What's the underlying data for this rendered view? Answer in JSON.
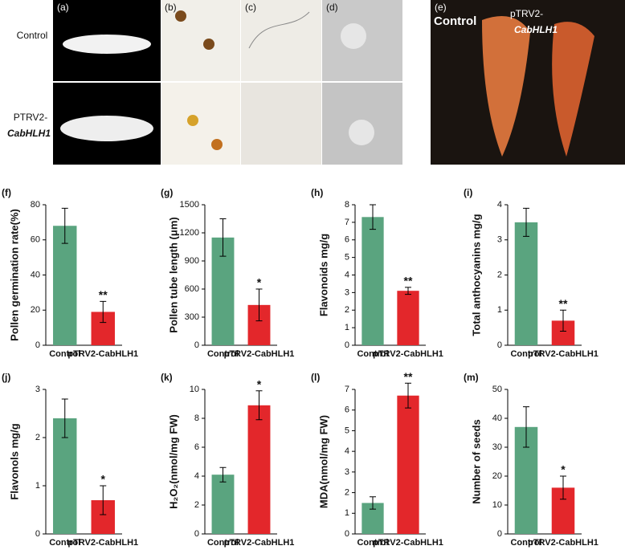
{
  "image_panels": {
    "letters": [
      "(a)",
      "(b)",
      "(c)",
      "(d)",
      "(e)"
    ],
    "row_labels": [
      "Control",
      "PTRV2-",
      "CabHLH1"
    ],
    "fruit_labels": [
      "Control",
      "pTRV2-",
      "CabHLH1"
    ]
  },
  "chart_data": [
    {
      "type": "bar",
      "panel": "(f)",
      "ylabel": "Pollen germination rate(%)",
      "categories": [
        "Control",
        "pTRV2-CabHLH1"
      ],
      "values": [
        68,
        19
      ],
      "errors": [
        10,
        6
      ],
      "significance": [
        null,
        "**"
      ],
      "colors": [
        "#5aa47f",
        "#e3272b"
      ],
      "ylim": [
        0,
        80
      ],
      "yticks": [
        0,
        20,
        40,
        60,
        80
      ]
    },
    {
      "type": "bar",
      "panel": "(g)",
      "ylabel": "Pollen tube length (μm)",
      "categories": [
        "Control",
        "pTRV2-CabHLH1"
      ],
      "values": [
        1150,
        430
      ],
      "errors": [
        200,
        170
      ],
      "significance": [
        null,
        "*"
      ],
      "colors": [
        "#5aa47f",
        "#e3272b"
      ],
      "ylim": [
        0,
        1500
      ],
      "yticks": [
        0,
        300,
        600,
        900,
        1200,
        1500
      ]
    },
    {
      "type": "bar",
      "panel": "(h)",
      "ylabel": "Flavonoids mg/g",
      "categories": [
        "Control",
        "pTRV2-CabHLH1"
      ],
      "values": [
        7.3,
        3.1
      ],
      "errors": [
        0.7,
        0.2
      ],
      "significance": [
        null,
        "**"
      ],
      "colors": [
        "#5aa47f",
        "#e3272b"
      ],
      "ylim": [
        0,
        8
      ],
      "yticks": [
        0,
        1,
        2,
        3,
        4,
        5,
        6,
        7,
        8
      ]
    },
    {
      "type": "bar",
      "panel": "(i)",
      "ylabel": "Total anthocyanins mg/g",
      "categories": [
        "Control",
        "pTRV2-CabHLH1"
      ],
      "values": [
        3.5,
        0.7
      ],
      "errors": [
        0.4,
        0.3
      ],
      "significance": [
        null,
        "**"
      ],
      "colors": [
        "#5aa47f",
        "#e3272b"
      ],
      "ylim": [
        0,
        4
      ],
      "yticks": [
        0,
        1,
        2,
        3,
        4
      ]
    },
    {
      "type": "bar",
      "panel": "(j)",
      "ylabel": "Flavonols mg/g",
      "categories": [
        "Control",
        "pTRV2-CabHLH1"
      ],
      "values": [
        2.4,
        0.7
      ],
      "errors": [
        0.4,
        0.3
      ],
      "significance": [
        null,
        "*"
      ],
      "colors": [
        "#5aa47f",
        "#e3272b"
      ],
      "ylim": [
        0,
        3
      ],
      "yticks": [
        0,
        1,
        2,
        3
      ]
    },
    {
      "type": "bar",
      "panel": "(k)",
      "ylabel": "H₂O₂(nmol/mg FW)",
      "categories": [
        "Control",
        "pTRV2-CabHLH1"
      ],
      "values": [
        4.1,
        8.9
      ],
      "errors": [
        0.5,
        1.0
      ],
      "significance": [
        null,
        "*"
      ],
      "colors": [
        "#5aa47f",
        "#e3272b"
      ],
      "ylim": [
        0,
        10
      ],
      "yticks": [
        0,
        2,
        4,
        6,
        8,
        10
      ]
    },
    {
      "type": "bar",
      "panel": "(l)",
      "ylabel": "MDA(nmol/mg FW)",
      "categories": [
        "Control",
        "pTRV2-CabHLH1"
      ],
      "values": [
        1.5,
        6.7
      ],
      "errors": [
        0.3,
        0.6
      ],
      "significance": [
        null,
        "**"
      ],
      "colors": [
        "#5aa47f",
        "#e3272b"
      ],
      "ylim": [
        0,
        7
      ],
      "yticks": [
        0,
        1,
        2,
        3,
        4,
        5,
        6,
        7
      ]
    },
    {
      "type": "bar",
      "panel": "(m)",
      "ylabel": "Number of seeds",
      "categories": [
        "Control",
        "pTRV2-CabHLH1"
      ],
      "values": [
        37,
        16
      ],
      "errors": [
        7,
        4
      ],
      "significance": [
        null,
        "*"
      ],
      "colors": [
        "#5aa47f",
        "#e3272b"
      ],
      "ylim": [
        0,
        50
      ],
      "yticks": [
        0,
        10,
        20,
        30,
        40,
        50
      ]
    }
  ]
}
